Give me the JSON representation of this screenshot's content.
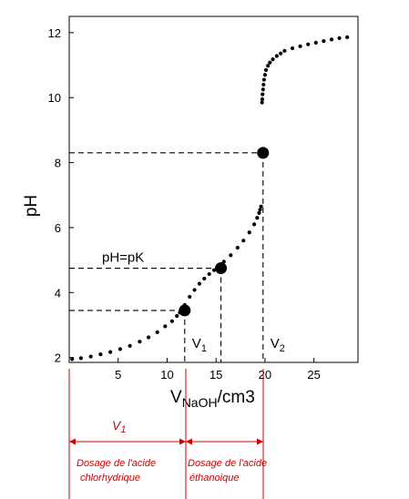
{
  "chart_data": {
    "type": "scatter",
    "title": "",
    "xlabel": "V",
    "xlabel_sub": "NaOH",
    "xlabel_suffix": "/cm3",
    "ylabel": "pH",
    "xlim": [
      0,
      29.5
    ],
    "ylim": [
      1.85,
      12.5
    ],
    "x_ticks": [
      5,
      10,
      15,
      20,
      25
    ],
    "y_ticks": [
      2,
      4,
      6,
      8,
      10,
      12
    ],
    "grid": false,
    "series": [
      {
        "marker": "small-dot",
        "x": [
          0.3,
          1.2,
          2.2,
          3.2,
          4.2,
          5.2,
          6.2,
          7.2,
          8.1,
          9.0,
          9.8,
          10.5,
          11.0,
          11.3,
          11.8,
          12.3,
          12.8,
          13.3,
          13.8,
          14.3,
          14.8,
          15.8,
          16.5,
          17.2,
          17.8,
          18.4,
          18.9,
          19.2,
          19.4,
          19.5,
          19.6,
          19.7,
          19.72,
          19.75,
          19.8,
          19.85,
          19.9,
          20.0,
          20.1,
          20.3,
          20.5,
          20.8,
          21.2,
          21.6,
          22.0,
          22.8,
          23.6,
          24.4,
          25.2,
          26.0,
          26.8,
          27.6,
          28.4
        ],
        "y": [
          1.95,
          1.98,
          2.03,
          2.1,
          2.17,
          2.26,
          2.36,
          2.49,
          2.62,
          2.78,
          2.96,
          3.12,
          3.28,
          3.38,
          3.62,
          3.87,
          4.08,
          4.27,
          4.43,
          4.57,
          4.69,
          4.95,
          5.15,
          5.38,
          5.6,
          5.85,
          6.1,
          6.3,
          6.45,
          6.55,
          6.65,
          9.85,
          9.95,
          10.1,
          10.25,
          10.4,
          10.55,
          10.7,
          10.85,
          10.98,
          11.08,
          11.18,
          11.28,
          11.36,
          11.44,
          11.52,
          11.58,
          11.64,
          11.69,
          11.74,
          11.79,
          11.83,
          11.86
        ]
      }
    ],
    "highlighted_points": [
      {
        "x": 11.8,
        "y": 3.45
      },
      {
        "x": 15.5,
        "y": 4.75
      },
      {
        "x": 19.8,
        "y": 8.3
      }
    ],
    "annotations": {
      "pk_label": "pH=pK",
      "v1_label": "V",
      "v1_sub": "1",
      "v2_label": "V",
      "v2_sub": "2"
    },
    "lower_annotations": {
      "v1_label": "V",
      "v1_sub": "1",
      "segment1_line1": "Dosage de l'acide",
      "segment1_line2": "chlorhydrique",
      "segment2_line1": "Dosage de l'acide",
      "segment2_line2": "éthanoique"
    },
    "colors": {
      "data": "#000000",
      "annotation": "#d00000"
    }
  }
}
